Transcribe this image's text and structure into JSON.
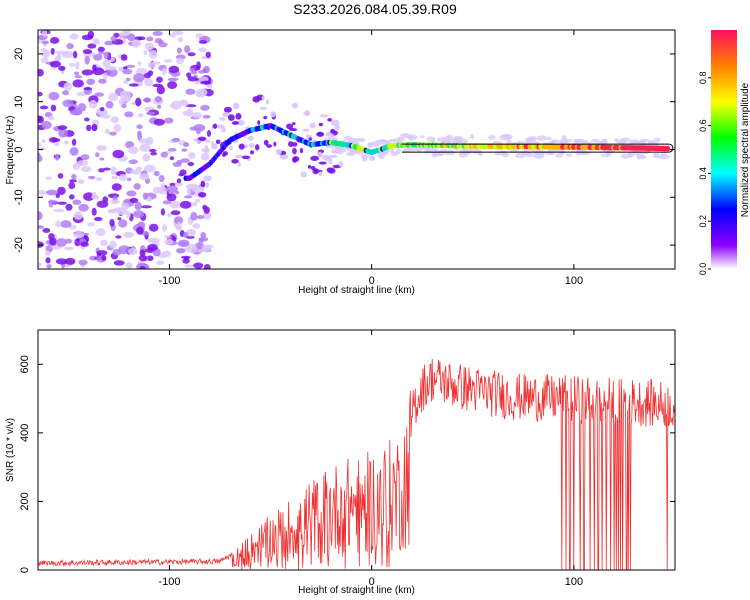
{
  "page": {
    "title": "S233.2026.084.05.39.R09"
  },
  "chart_data": [
    {
      "type": "heatmap",
      "name": "spectrogram",
      "xlabel": "Height of straight line (km)",
      "ylabel": "Frequency (Hz)",
      "xlim": [
        -165,
        150
      ],
      "ylim": [
        -25,
        25
      ],
      "xticks": [
        -100,
        0,
        100
      ],
      "yticks": [
        -20,
        -10,
        0,
        10,
        20
      ],
      "colorbar": {
        "label": "Normalized spectral amplitude",
        "range": [
          0,
          1
        ],
        "ticks": [
          "0.0",
          "0.2",
          "0.4",
          "0.6",
          "0.8"
        ],
        "tick_values": [
          0.0,
          0.2,
          0.4,
          0.6,
          0.8
        ]
      },
      "ridge": {
        "x": [
          -90,
          -80,
          -70,
          -60,
          -50,
          -40,
          -30,
          -20,
          -10,
          0,
          10,
          20,
          40,
          60,
          80,
          100,
          120,
          147
        ],
        "y": [
          -6,
          -3,
          2,
          4,
          5,
          3,
          1,
          1.5,
          0.8,
          -0.6,
          0.8,
          1,
          0.8,
          0.7,
          0.6,
          0.5,
          0.4,
          0.2
        ]
      }
    },
    {
      "type": "line",
      "name": "snr",
      "xlabel": "Height of straight line (km)",
      "ylabel": "SNR (10 * v/v)",
      "xlim": [
        -165,
        150
      ],
      "ylim": [
        0,
        700
      ],
      "xticks": [
        -100,
        0,
        100
      ],
      "yticks": [
        0,
        200,
        400,
        600
      ],
      "color": "#f03030",
      "envelope": {
        "x": [
          -165,
          -75,
          -65,
          -55,
          -45,
          -35,
          -25,
          -15,
          -5,
          5,
          15,
          20,
          25,
          30,
          40,
          55,
          70,
          90,
          110,
          130,
          150
        ],
        "y": [
          20,
          25,
          60,
          110,
          150,
          190,
          230,
          260,
          270,
          290,
          330,
          470,
          530,
          560,
          540,
          520,
          505,
          500,
          495,
          490,
          480
        ]
      },
      "dropouts_x": [
        94,
        96,
        98,
        100,
        103,
        105,
        108,
        110,
        112,
        114,
        116,
        118,
        120,
        121,
        122,
        123,
        124,
        126,
        127,
        128,
        146
      ]
    }
  ]
}
